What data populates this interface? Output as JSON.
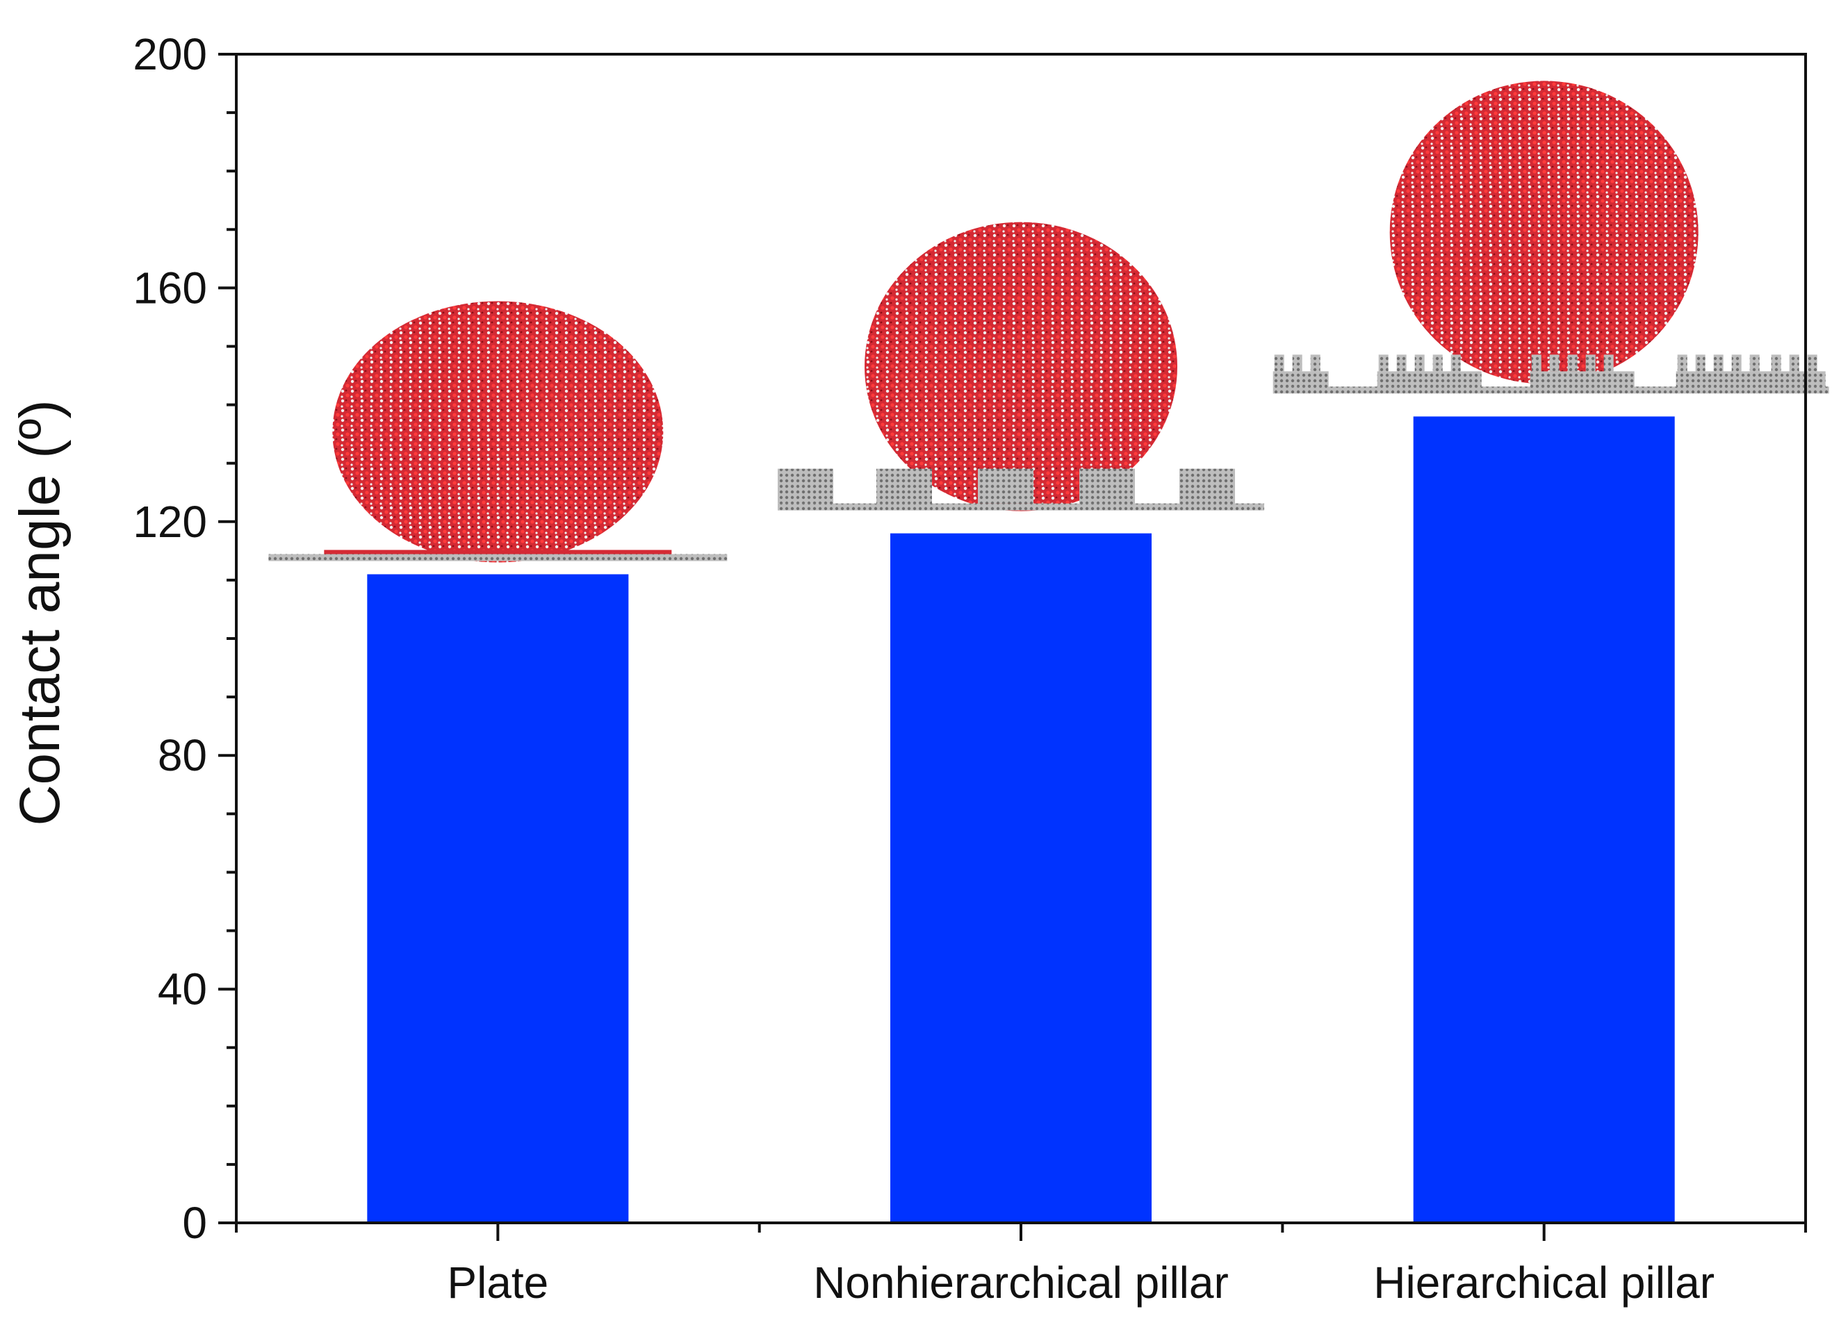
{
  "chart_data": {
    "type": "bar",
    "title": "",
    "xlabel": "",
    "ylabel": "Contact angle (º)",
    "categories": [
      "Plate",
      "Nonhierarchical pillar",
      "Hierarchical pillar"
    ],
    "values": [
      111,
      118,
      138
    ],
    "ylim": [
      0,
      200
    ],
    "yticks": [
      0,
      40,
      80,
      120,
      160,
      200
    ],
    "grid": false,
    "legend": "none",
    "bar_color": "#0033ff",
    "droplet_color": "#d42a34",
    "substrate_color": "#9a9a9a",
    "insets": [
      {
        "category": "Plate",
        "surface": "flat"
      },
      {
        "category": "Nonhierarchical pillar",
        "surface": "pillars"
      },
      {
        "category": "Hierarchical pillar",
        "surface": "hierarchical-pillars"
      }
    ]
  }
}
